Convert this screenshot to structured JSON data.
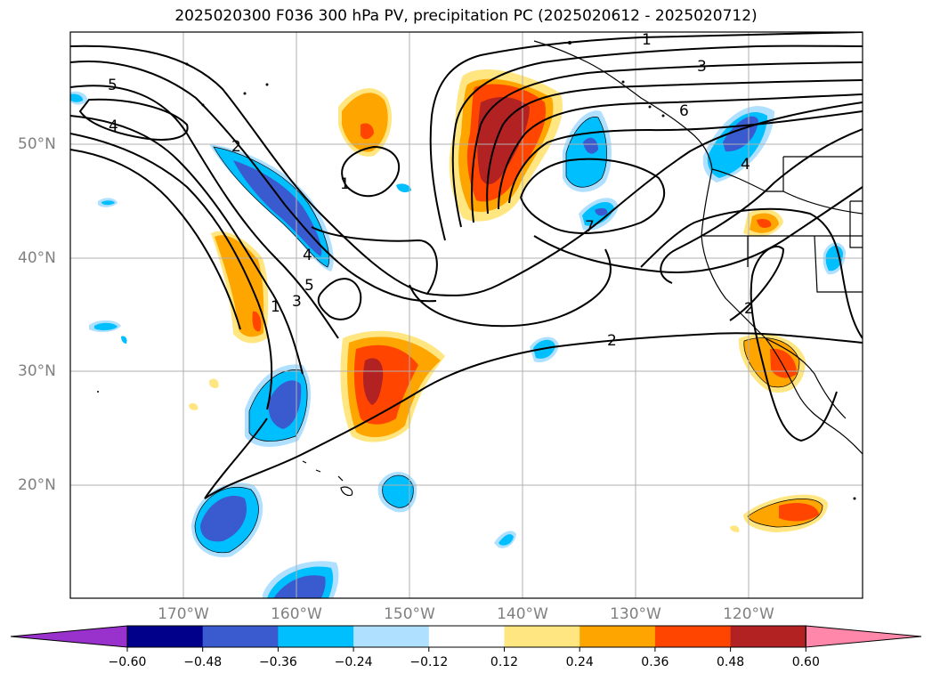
{
  "title": "2025020300 F036 300 hPa PV, precipitation PC (2025020612 - 2025020712)",
  "lon_labels": [
    "170°W",
    "160°W",
    "150°W",
    "140°W",
    "130°W",
    "120°W"
  ],
  "lat_labels": [
    "50°N",
    "40°N",
    "30°N",
    "20°N"
  ],
  "contour_labels": [
    "1",
    "2",
    "3",
    "4",
    "5",
    "6",
    "7"
  ],
  "colorbar": {
    "ticks": [
      "−0.60",
      "−0.48",
      "−0.36",
      "−0.24",
      "−0.12",
      "0.12",
      "0.24",
      "0.36",
      "0.48",
      "0.60"
    ],
    "colors": [
      "#9932cc",
      "#00008b",
      "#3a5bd0",
      "#00bfff",
      "#b0e0ff",
      "#ffffff",
      "#ffe680",
      "#ffa500",
      "#ff4500",
      "#b22222",
      "#ff88aa"
    ]
  }
}
